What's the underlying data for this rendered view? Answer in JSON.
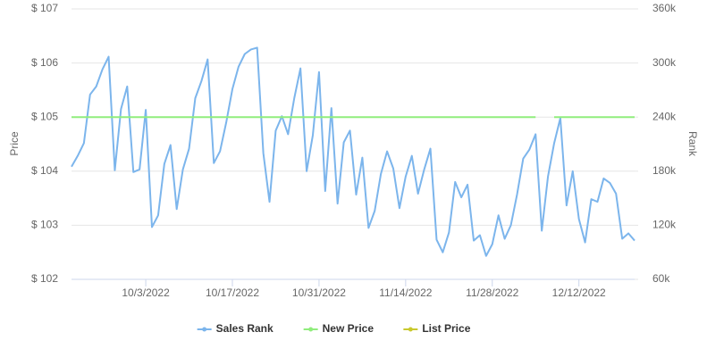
{
  "chart_data": {
    "type": "line",
    "x": [
      "9/21/2022",
      "9/22/2022",
      "9/23/2022",
      "9/24/2022",
      "9/25/2022",
      "9/26/2022",
      "9/27/2022",
      "9/28/2022",
      "9/29/2022",
      "9/30/2022",
      "10/1/2022",
      "10/2/2022",
      "10/3/2022",
      "10/4/2022",
      "10/5/2022",
      "10/6/2022",
      "10/7/2022",
      "10/8/2022",
      "10/9/2022",
      "10/10/2022",
      "10/11/2022",
      "10/12/2022",
      "10/13/2022",
      "10/14/2022",
      "10/15/2022",
      "10/16/2022",
      "10/17/2022",
      "10/18/2022",
      "10/19/2022",
      "10/20/2022",
      "10/21/2022",
      "10/22/2022",
      "10/23/2022",
      "10/24/2022",
      "10/25/2022",
      "10/26/2022",
      "10/27/2022",
      "10/28/2022",
      "10/29/2022",
      "10/30/2022",
      "10/31/2022",
      "11/1/2022",
      "11/2/2022",
      "11/3/2022",
      "11/4/2022",
      "11/5/2022",
      "11/6/2022",
      "11/7/2022",
      "11/8/2022",
      "11/9/2022",
      "11/10/2022",
      "11/11/2022",
      "11/12/2022",
      "11/13/2022",
      "11/14/2022",
      "11/15/2022",
      "11/16/2022",
      "11/17/2022",
      "11/18/2022",
      "11/19/2022",
      "11/20/2022",
      "11/21/2022",
      "11/22/2022",
      "11/23/2022",
      "11/24/2022",
      "11/25/2022",
      "11/26/2022",
      "11/27/2022",
      "11/28/2022",
      "11/29/2022",
      "11/30/2022",
      "12/1/2022",
      "12/2/2022",
      "12/3/2022",
      "12/4/2022",
      "12/5/2022",
      "12/6/2022",
      "12/7/2022",
      "12/8/2022",
      "12/9/2022",
      "12/10/2022",
      "12/11/2022",
      "12/12/2022",
      "12/13/2022",
      "12/14/2022",
      "12/15/2022",
      "12/16/2022",
      "12/17/2022",
      "12/18/2022",
      "12/19/2022",
      "12/20/2022",
      "12/21/2022"
    ],
    "xlim": [
      "9/21/2022",
      "12/21/2022"
    ],
    "xticks": [
      "10/3/2022",
      "10/17/2022",
      "10/31/2022",
      "11/14/2022",
      "11/28/2022",
      "12/12/2022"
    ],
    "ylabel": "Price",
    "y2label": "Rank",
    "ylim": [
      102,
      107
    ],
    "yticks": [
      {
        "value": 102,
        "label": "$ 102"
      },
      {
        "value": 103,
        "label": "$ 103"
      },
      {
        "value": 104,
        "label": "$ 104"
      },
      {
        "value": 105,
        "label": "$ 105"
      },
      {
        "value": 106,
        "label": "$ 106"
      },
      {
        "value": 107,
        "label": "$ 107"
      }
    ],
    "y2lim": [
      60000,
      360000
    ],
    "y2ticks": [
      {
        "value": 60000,
        "label": "60k"
      },
      {
        "value": 120000,
        "label": "120k"
      },
      {
        "value": 180000,
        "label": "180k"
      },
      {
        "value": 240000,
        "label": "240k"
      },
      {
        "value": 300000,
        "label": "300k"
      },
      {
        "value": 360000,
        "label": "360k"
      }
    ],
    "grid": true,
    "legend": "bottom",
    "series": [
      {
        "name": "Sales Rank",
        "color": "#7cb5ec",
        "axis": "y2",
        "values": [
          185000,
          197000,
          211000,
          265000,
          274000,
          293000,
          307000,
          181000,
          249000,
          274000,
          179000,
          182000,
          248000,
          118000,
          131000,
          188000,
          209000,
          138000,
          182000,
          205000,
          261000,
          280000,
          304000,
          189000,
          202000,
          234000,
          271000,
          296000,
          310000,
          315000,
          317000,
          200000,
          146000,
          225000,
          241000,
          221000,
          261000,
          294000,
          180000,
          220000,
          290000,
          158000,
          250000,
          144000,
          212000,
          225000,
          154000,
          195000,
          117000,
          136000,
          177000,
          202000,
          183000,
          139000,
          174000,
          197000,
          155000,
          182000,
          205000,
          104000,
          90000,
          112000,
          168000,
          151000,
          165000,
          103000,
          109000,
          86000,
          99000,
          131000,
          105000,
          120000,
          154000,
          194000,
          204000,
          221000,
          114000,
          174000,
          211000,
          239000,
          142000,
          180000,
          127000,
          101000,
          149000,
          146000,
          172000,
          167000,
          155000,
          105000,
          111000,
          103000
        ]
      },
      {
        "name": "New Price",
        "color": "#90ed7d",
        "values": [
          105,
          105,
          105,
          105,
          105,
          105,
          105,
          105,
          105,
          105,
          105,
          105,
          105,
          105,
          105,
          105,
          105,
          105,
          105,
          105,
          105,
          105,
          105,
          105,
          105,
          105,
          105,
          105,
          105,
          105,
          105,
          105,
          105,
          105,
          105,
          105,
          105,
          105,
          105,
          105,
          105,
          105,
          105,
          105,
          105,
          105,
          105,
          105,
          105,
          105,
          105,
          105,
          105,
          105,
          105,
          105,
          105,
          105,
          105,
          105,
          105,
          105,
          105,
          105,
          105,
          105,
          105,
          105,
          105,
          105,
          105,
          105,
          105,
          105,
          105,
          105,
          null,
          null,
          105,
          105,
          105,
          105,
          105,
          105,
          105,
          105,
          105,
          105,
          105,
          105,
          105,
          105
        ]
      },
      {
        "name": "List Price",
        "color": "#c9c92e",
        "values": [
          null,
          null,
          null,
          null,
          null,
          null,
          null,
          null,
          null,
          null,
          null,
          null,
          null,
          null,
          null,
          null,
          null,
          null,
          null,
          null,
          null,
          null,
          null,
          null,
          null,
          null,
          null,
          null,
          null,
          null,
          null,
          null,
          null,
          null,
          null,
          null,
          null,
          null,
          null,
          null,
          null,
          null,
          null,
          null,
          null,
          null,
          null,
          null,
          null,
          null,
          null,
          null,
          null,
          null,
          null,
          null,
          null,
          null,
          null,
          null,
          null,
          null,
          null,
          null,
          null,
          null,
          null,
          null,
          null,
          null,
          null,
          null,
          null,
          null,
          null,
          null,
          null,
          null,
          null,
          null,
          null,
          null,
          null,
          null,
          null,
          null,
          null,
          null,
          null,
          null,
          null,
          null
        ]
      }
    ]
  }
}
